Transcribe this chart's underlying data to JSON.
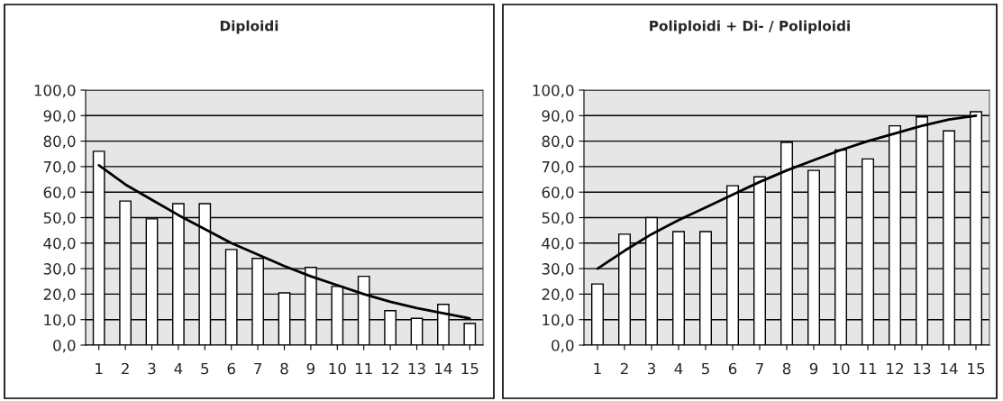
{
  "chart_data": [
    {
      "type": "bar",
      "title": "Diploidi",
      "categories": [
        "1",
        "2",
        "3",
        "4",
        "5",
        "6",
        "7",
        "8",
        "9",
        "10",
        "11",
        "12",
        "13",
        "14",
        "15"
      ],
      "series": [
        {
          "type": "bar",
          "color": "#ffffff",
          "values": [
            76,
            56.5,
            49.5,
            55.5,
            55.5,
            37.5,
            34,
            20.5,
            30.5,
            23,
            27,
            13.5,
            10.5,
            16,
            8.5
          ]
        },
        {
          "type": "line",
          "color": "#000000",
          "values": [
            70.5,
            63,
            57,
            51,
            45.5,
            40,
            35.5,
            31,
            27,
            23.5,
            20,
            17,
            14.5,
            12.5,
            10.5
          ]
        }
      ],
      "ylim": [
        0,
        100
      ],
      "yticks": [
        {
          "value": 0,
          "label": "0,0"
        },
        {
          "value": 10,
          "label": "10,0"
        },
        {
          "value": 20,
          "label": "20,0"
        },
        {
          "value": 30,
          "label": "30,0"
        },
        {
          "value": 40,
          "label": "40,0"
        },
        {
          "value": 50,
          "label": "50,0"
        },
        {
          "value": 60,
          "label": "60,0"
        },
        {
          "value": 70,
          "label": "70,0"
        },
        {
          "value": 80,
          "label": "80,0"
        },
        {
          "value": 90,
          "label": "90,0"
        },
        {
          "value": 100,
          "label": "100,0"
        }
      ],
      "grid": "y",
      "legend": false,
      "marker": "none"
    },
    {
      "type": "bar",
      "title": "Poliploidi + Di- / Poliploidi",
      "categories": [
        "1",
        "2",
        "3",
        "4",
        "5",
        "6",
        "7",
        "8",
        "9",
        "10",
        "11",
        "12",
        "13",
        "14",
        "15"
      ],
      "series": [
        {
          "type": "bar",
          "color": "#ffffff",
          "values": [
            24,
            43.5,
            50,
            44.5,
            44.5,
            62.5,
            66,
            79.5,
            68.5,
            76.5,
            73,
            86,
            89.5,
            84,
            91.5
          ]
        },
        {
          "type": "line",
          "color": "#000000",
          "values": [
            30,
            37,
            43.5,
            49,
            54,
            59,
            64,
            68.5,
            72.5,
            76.5,
            80,
            83,
            86,
            88.5,
            90
          ]
        }
      ],
      "ylim": [
        0,
        100
      ],
      "yticks": [
        {
          "value": 0,
          "label": "0,0"
        },
        {
          "value": 10,
          "label": "10,0"
        },
        {
          "value": 20,
          "label": "20,0"
        },
        {
          "value": 30,
          "label": "30,0"
        },
        {
          "value": 40,
          "label": "40,0"
        },
        {
          "value": 50,
          "label": "50,0"
        },
        {
          "value": 60,
          "label": "60,0"
        },
        {
          "value": 70,
          "label": "70,0"
        },
        {
          "value": 80,
          "label": "80,0"
        },
        {
          "value": 90,
          "label": "90,0"
        },
        {
          "value": 100,
          "label": "100,0"
        }
      ],
      "grid": "y",
      "legend": false,
      "marker": "none"
    }
  ]
}
